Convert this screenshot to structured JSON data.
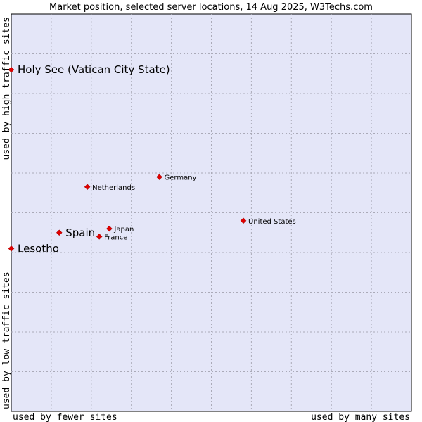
{
  "chart_data": {
    "type": "scatter",
    "title": "Market position, selected server locations, 14 Aug 2025, W3Techs.com",
    "xlabel_low": "used by fewer sites",
    "xlabel_high": "used by many sites",
    "ylabel_low": "used by low traffic sites",
    "ylabel_high": "used by high traffic sites",
    "xlim": [
      0,
      10
    ],
    "ylim": [
      0,
      10
    ],
    "grid": true,
    "colors": {
      "plot_bg": "#e4e6f8",
      "marker": "#e00000",
      "grid": "#aaaab8"
    },
    "points": [
      {
        "label": "Holy See (Vatican City State)",
        "x": 0.0,
        "y": 8.6,
        "highlight": true
      },
      {
        "label": "Germany",
        "x": 3.7,
        "y": 5.9,
        "highlight": false
      },
      {
        "label": "Netherlands",
        "x": 1.9,
        "y": 5.65,
        "highlight": false
      },
      {
        "label": "United States",
        "x": 5.8,
        "y": 4.8,
        "highlight": false
      },
      {
        "label": "Japan",
        "x": 2.45,
        "y": 4.6,
        "highlight": false
      },
      {
        "label": "Spain",
        "x": 1.2,
        "y": 4.5,
        "highlight": true
      },
      {
        "label": "France",
        "x": 2.2,
        "y": 4.4,
        "highlight": false
      },
      {
        "label": "Lesotho",
        "x": 0.0,
        "y": 4.1,
        "highlight": true
      }
    ]
  }
}
